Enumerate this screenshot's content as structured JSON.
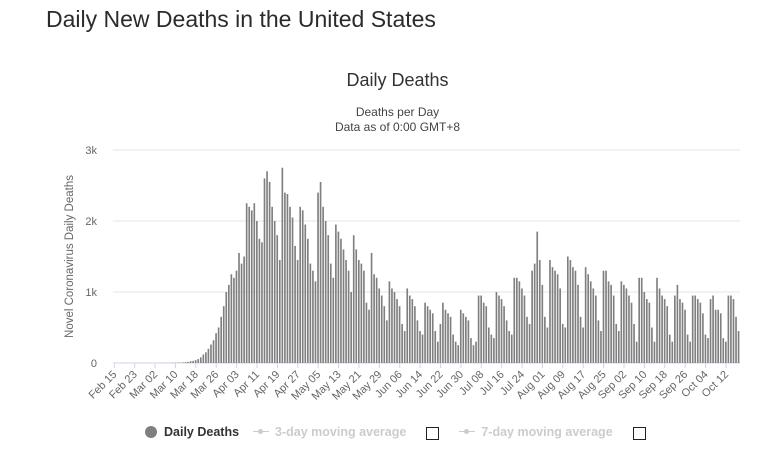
{
  "page": {
    "title": "Daily New Deaths in the United States"
  },
  "chart_data": {
    "type": "bar",
    "title": "Daily Deaths",
    "subtitle_lines": [
      "Deaths per Day",
      "Data as of 0:00 GMT+8"
    ],
    "ylabel": "Novel Coronavirus Daily Deaths",
    "xlabel": "",
    "ylim": [
      0,
      3000
    ],
    "y_ticks": [
      0,
      1000,
      2000,
      3000
    ],
    "y_tick_labels": [
      "0",
      "1k",
      "2k",
      "3k"
    ],
    "grid": true,
    "legend_position": "bottom",
    "start_date": "2020-02-15",
    "x_tick_labels": [
      "Feb 15",
      "Feb 23",
      "Mar 02",
      "Mar 10",
      "Mar 18",
      "Mar 26",
      "Apr 03",
      "Apr 11",
      "Apr 19",
      "Apr 27",
      "May 05",
      "May 13",
      "May 21",
      "May 29",
      "Jun 06",
      "Jun 14",
      "Jun 22",
      "Jun 30",
      "Jul 08",
      "Jul 16",
      "Jul 24",
      "Aug 01",
      "Aug 09",
      "Aug 17",
      "Aug 25",
      "Sep 02",
      "Sep 10",
      "Sep 18",
      "Sep 26",
      "Oct 04",
      "Oct 12"
    ],
    "bar_color": "#7f7f7f",
    "series": [
      {
        "name": "Daily Deaths",
        "values": [
          0,
          0,
          0,
          0,
          0,
          0,
          0,
          0,
          0,
          0,
          0,
          0,
          0,
          0,
          0,
          0,
          0,
          1,
          1,
          2,
          1,
          1,
          2,
          4,
          3,
          6,
          5,
          8,
          12,
          15,
          25,
          30,
          40,
          55,
          80,
          120,
          150,
          200,
          260,
          320,
          420,
          500,
          650,
          800,
          1000,
          1100,
          1250,
          1200,
          1300,
          1550,
          1400,
          1500,
          2250,
          2200,
          2150,
          2250,
          2000,
          1750,
          1700,
          2600,
          2700,
          2550,
          2200,
          2000,
          1800,
          1450,
          2750,
          2400,
          2380,
          2200,
          2050,
          1650,
          1450,
          2200,
          2150,
          1950,
          1750,
          1400,
          1300,
          1150,
          2400,
          2550,
          2200,
          2000,
          1800,
          1400,
          1200,
          1950,
          1850,
          1750,
          1600,
          1450,
          1300,
          1000,
          1800,
          1600,
          1450,
          1400,
          1300,
          850,
          750,
          1550,
          1250,
          1200,
          1050,
          950,
          800,
          600,
          1150,
          1050,
          1000,
          900,
          800,
          550,
          450,
          1050,
          950,
          900,
          800,
          600,
          450,
          400,
          850,
          800,
          750,
          700,
          450,
          300,
          550,
          850,
          750,
          700,
          650,
          400,
          300,
          250,
          750,
          700,
          650,
          600,
          350,
          250,
          300,
          950,
          950,
          850,
          800,
          500,
          400,
          350,
          1000,
          950,
          900,
          800,
          600,
          450,
          400,
          1200,
          1200,
          1150,
          1050,
          950,
          650,
          550,
          1300,
          1400,
          1850,
          1450,
          1100,
          650,
          500,
          1450,
          1350,
          1300,
          1250,
          1050,
          550,
          500,
          1500,
          1450,
          1350,
          1300,
          1100,
          650,
          500,
          1350,
          1250,
          1150,
          1050,
          950,
          600,
          450,
          1300,
          1300,
          1150,
          1100,
          950,
          550,
          450,
          1150,
          1100,
          1050,
          950,
          850,
          550,
          300,
          1200,
          1200,
          1000,
          900,
          850,
          500,
          300,
          1200,
          1050,
          950,
          900,
          800,
          400,
          300,
          950,
          1100,
          900,
          850,
          750,
          400,
          300,
          950,
          950,
          900,
          850,
          700,
          400,
          350,
          900,
          950,
          750,
          750,
          700,
          350,
          300,
          950,
          950,
          900,
          650,
          450
        ]
      }
    ]
  },
  "legend": {
    "items": [
      {
        "label": "Daily Deaths",
        "active": true
      },
      {
        "label": "3-day moving average",
        "active": false
      },
      {
        "label": "7-day moving average",
        "active": false
      }
    ],
    "series_color": "#7f7f7f",
    "inactive_color": "#cccccc"
  }
}
